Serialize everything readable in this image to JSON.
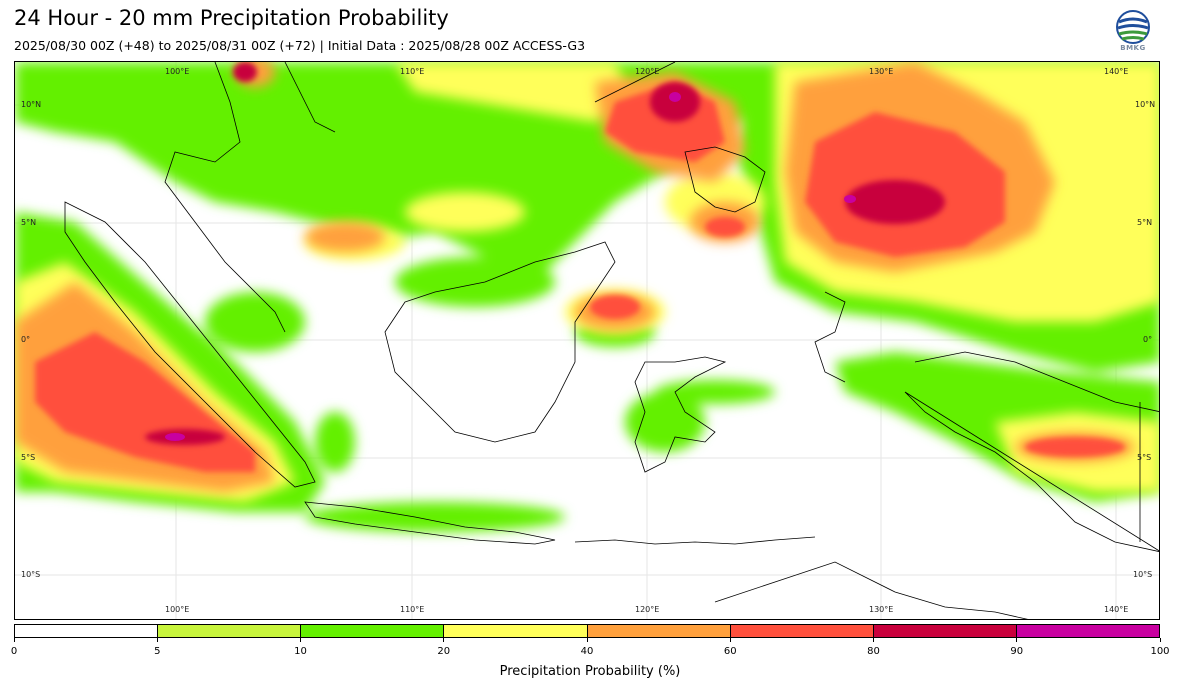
{
  "header": {
    "title": "24 Hour - 20 mm Precipitation Probability",
    "subtitle": "2025/08/30 00Z (+48) to 2025/08/31 00Z (+72) | Initial Data : 2025/08/28 00Z ACCESS-G3",
    "logo_text": "BMKG"
  },
  "map": {
    "lon_labels": [
      "100°E",
      "110°E",
      "120°E",
      "130°E",
      "140°E"
    ],
    "lat_labels": [
      "10°N",
      "5°N",
      "0°",
      "5°S",
      "10°S"
    ]
  },
  "colorbar": {
    "label": "Precipitation Probability (%)",
    "ticks": [
      "0",
      "5",
      "10",
      "20",
      "40",
      "60",
      "80",
      "90",
      "100"
    ],
    "colors": [
      "#ffffff",
      "#c8f53c",
      "#64f000",
      "#ffff5a",
      "#ffa03c",
      "#ff503c",
      "#c8003c",
      "#c800a0"
    ]
  }
}
